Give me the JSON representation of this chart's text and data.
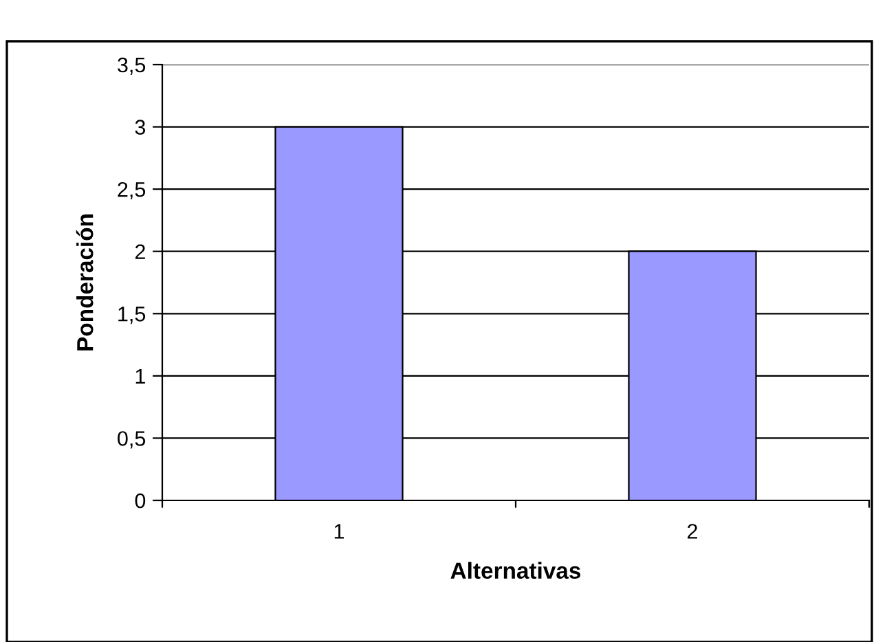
{
  "chart_data": {
    "type": "bar",
    "xlabel": "Alternativas",
    "ylabel": "Ponderación",
    "categories": [
      "1",
      "2"
    ],
    "values": [
      3,
      2
    ],
    "color": "#9999ff",
    "ylim": [
      0,
      3.5
    ],
    "yticks": [
      0,
      {
        "value": 0.5,
        "label": "0,5"
      },
      1,
      {
        "value": 1.5,
        "label": "1,5"
      },
      2,
      {
        "value": 2.5,
        "label": "2,5"
      },
      3,
      {
        "value": 3.5,
        "label": "3,5"
      }
    ],
    "grid": "y",
    "legend": false
  }
}
